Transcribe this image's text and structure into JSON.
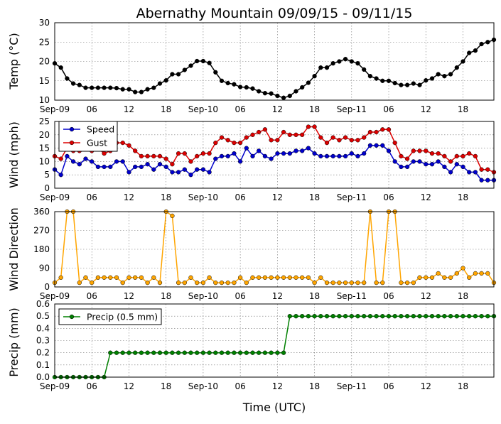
{
  "title": "Abernathy Mountain 09/09/15 - 09/11/15",
  "xlabel": "Time (UTC)",
  "x_tick_labels": [
    "Sep-09",
    "06",
    "12",
    "18",
    "Sep-10",
    "06",
    "12",
    "18",
    "Sep-11",
    "06",
    "12",
    "18"
  ],
  "colors": {
    "temp": "#000000",
    "speed": "#0000cc",
    "gust": "#dd0000",
    "direction": "#ffa500",
    "precip": "#008000"
  },
  "chart_data": [
    {
      "type": "line",
      "ylabel": "Temp (°C)",
      "x_unit": "hours since 2015-09-09 00:00 UTC",
      "x_start": 0,
      "x_step": 1,
      "xlim": [
        0,
        71
      ],
      "ylim": [
        10,
        30
      ],
      "yticks": [
        10,
        15,
        20,
        25,
        30
      ],
      "grid": true,
      "series": [
        {
          "name": "Temp",
          "color": "#000000",
          "values": [
            19.5,
            18.4,
            15.6,
            14.3,
            13.9,
            13.2,
            13.2,
            13.2,
            13.2,
            13.2,
            13.1,
            12.8,
            12.8,
            12.1,
            12.1,
            12.8,
            13.2,
            14.3,
            15.1,
            16.7,
            16.7,
            17.8,
            18.9,
            20.1,
            20.1,
            19.6,
            17.2,
            15,
            14.4,
            14.1,
            13.4,
            13.3,
            13,
            12.3,
            11.8,
            11.7,
            11.1,
            10.6,
            11.1,
            12.3,
            13.3,
            14.5,
            16.2,
            18.4,
            18.4,
            19.5,
            20,
            20.6,
            20,
            19.5,
            17.9,
            16.2,
            15.6,
            15,
            15,
            14.4,
            13.9,
            13.9,
            14.3,
            13.9,
            15.1,
            15.6,
            16.7,
            16.2,
            16.7,
            18.4,
            20,
            22.2,
            22.8,
            24.5,
            25,
            25.6
          ]
        }
      ]
    },
    {
      "type": "line",
      "ylabel": "Wind (mph)",
      "x_unit": "hours since 2015-09-09 00:00 UTC",
      "x_start": 0,
      "x_step": 1,
      "xlim": [
        0,
        71
      ],
      "ylim": [
        0,
        25
      ],
      "yticks": [
        0,
        5,
        10,
        15,
        20,
        25
      ],
      "grid": true,
      "legend": "top-left",
      "series": [
        {
          "name": "Speed",
          "color": "#0000cc",
          "values": [
            7,
            5,
            12,
            10,
            9,
            11,
            10,
            8,
            8,
            8,
            10,
            10,
            6,
            8,
            8,
            9,
            7,
            9,
            8,
            6,
            6,
            7,
            5,
            7,
            7,
            6,
            11,
            12,
            12,
            13,
            10,
            15,
            12,
            14,
            12,
            11,
            13,
            13,
            13,
            14,
            14,
            15,
            13,
            12,
            12,
            12,
            12,
            12,
            13,
            12,
            13,
            16,
            16,
            16,
            14,
            10,
            8,
            8,
            10,
            10,
            9,
            9,
            10,
            8,
            6,
            9,
            8,
            6,
            6,
            3,
            3,
            3
          ]
        },
        {
          "name": "Gust",
          "color": "#dd0000",
          "values": [
            12,
            11,
            15,
            14,
            14,
            16,
            14,
            15,
            13,
            14,
            17,
            17,
            16,
            14,
            12,
            12,
            12,
            12,
            11,
            9,
            13,
            13,
            10,
            12,
            13,
            13,
            17,
            19,
            18,
            17,
            17,
            19,
            20,
            21,
            22,
            18,
            18,
            21,
            20,
            20,
            20,
            23,
            23,
            19,
            17,
            19,
            18,
            19,
            18,
            18,
            19,
            21,
            21,
            22,
            22,
            17,
            12,
            11,
            14,
            14,
            14,
            13,
            13,
            12,
            10,
            12,
            12,
            13,
            12,
            7,
            7,
            6
          ]
        }
      ]
    },
    {
      "type": "line",
      "ylabel": "Wind Direction",
      "x_unit": "hours since 2015-09-09 00:00 UTC",
      "x_start": 0,
      "x_step": 1,
      "xlim": [
        0,
        71
      ],
      "ylim": [
        0,
        360
      ],
      "yticks": [
        0,
        90,
        180,
        270,
        360
      ],
      "grid": true,
      "series": [
        {
          "name": "Wind Direction",
          "color": "#ffa500",
          "values": [
            20,
            45,
            360,
            360,
            20,
            45,
            20,
            45,
            45,
            45,
            45,
            20,
            45,
            45,
            45,
            20,
            45,
            20,
            360,
            340,
            20,
            20,
            45,
            20,
            20,
            45,
            20,
            20,
            20,
            20,
            45,
            20,
            45,
            45,
            45,
            45,
            45,
            45,
            45,
            45,
            45,
            45,
            20,
            45,
            20,
            20,
            20,
            20,
            20,
            20,
            20,
            360,
            20,
            20,
            360,
            360,
            20,
            20,
            20,
            45,
            45,
            45,
            65,
            45,
            45,
            65,
            90,
            45,
            65,
            65,
            65,
            20
          ]
        }
      ]
    },
    {
      "type": "line",
      "ylabel": "Precip (mm)",
      "x_unit": "hours since 2015-09-09 00:00 UTC",
      "x_start": 0,
      "x_step": 1,
      "xlim": [
        0,
        71
      ],
      "ylim": [
        0,
        0.6
      ],
      "yticks": [
        0.0,
        0.1,
        0.2,
        0.3,
        0.4,
        0.5,
        0.6
      ],
      "grid": true,
      "legend": "top-left",
      "series": [
        {
          "name": "Precip (0.5 mm)",
          "color": "#008000",
          "values": [
            0,
            0,
            0,
            0,
            0,
            0,
            0,
            0,
            0,
            0.2,
            0.2,
            0.2,
            0.2,
            0.2,
            0.2,
            0.2,
            0.2,
            0.2,
            0.2,
            0.2,
            0.2,
            0.2,
            0.2,
            0.2,
            0.2,
            0.2,
            0.2,
            0.2,
            0.2,
            0.2,
            0.2,
            0.2,
            0.2,
            0.2,
            0.2,
            0.2,
            0.2,
            0.2,
            0.5,
            0.5,
            0.5,
            0.5,
            0.5,
            0.5,
            0.5,
            0.5,
            0.5,
            0.5,
            0.5,
            0.5,
            0.5,
            0.5,
            0.5,
            0.5,
            0.5,
            0.5,
            0.5,
            0.5,
            0.5,
            0.5,
            0.5,
            0.5,
            0.5,
            0.5,
            0.5,
            0.5,
            0.5,
            0.5,
            0.5,
            0.5,
            0.5,
            0.5
          ]
        }
      ]
    }
  ]
}
